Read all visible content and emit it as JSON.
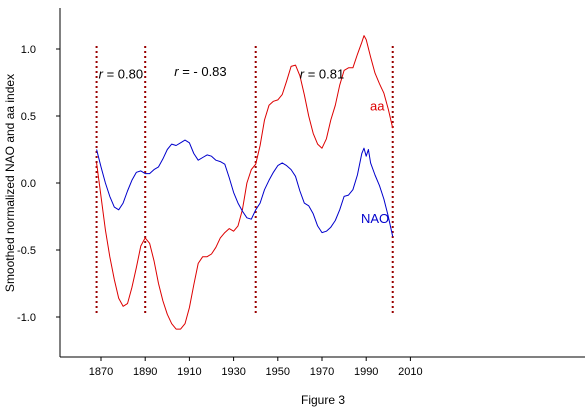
{
  "colors": {
    "aa": "#dd0000",
    "NAO": "#0000cc",
    "divider": "#990000",
    "axis": "#000000"
  },
  "caption": "Figure 3",
  "chart_data": {
    "type": "line",
    "title": "",
    "xlabel": "",
    "ylabel": "Smoothed normalized NAO and aa index",
    "xlim": [
      1860,
      2022
    ],
    "ylim": [
      -1.3,
      1.3
    ],
    "x_ticks": [
      1870,
      1890,
      1910,
      1930,
      1950,
      1970,
      1990,
      2010
    ],
    "y_ticks": [
      {
        "value": 1.0,
        "label": "1.0"
      },
      {
        "value": 0.5,
        "label": "0.5"
      },
      {
        "value": 0.0,
        "label": "0.0"
      },
      {
        "value": -0.5,
        "label": "-0.5"
      },
      {
        "value": -1.0,
        "label": "-1.0"
      }
    ],
    "grid": false,
    "series": [
      {
        "name": "aa",
        "color": "#dd0000",
        "points": [
          [
            1868,
            0.15
          ],
          [
            1870,
            -0.1
          ],
          [
            1872,
            -0.35
          ],
          [
            1874,
            -0.55
          ],
          [
            1876,
            -0.72
          ],
          [
            1878,
            -0.86
          ],
          [
            1880,
            -0.92
          ],
          [
            1882,
            -0.9
          ],
          [
            1884,
            -0.78
          ],
          [
            1886,
            -0.63
          ],
          [
            1888,
            -0.47
          ],
          [
            1890,
            -0.41
          ],
          [
            1892,
            -0.45
          ],
          [
            1894,
            -0.58
          ],
          [
            1896,
            -0.75
          ],
          [
            1898,
            -0.88
          ],
          [
            1900,
            -0.98
          ],
          [
            1902,
            -1.05
          ],
          [
            1904,
            -1.09
          ],
          [
            1906,
            -1.09
          ],
          [
            1908,
            -1.05
          ],
          [
            1910,
            -0.93
          ],
          [
            1912,
            -0.76
          ],
          [
            1914,
            -0.6
          ],
          [
            1916,
            -0.55
          ],
          [
            1918,
            -0.55
          ],
          [
            1920,
            -0.53
          ],
          [
            1922,
            -0.48
          ],
          [
            1924,
            -0.41
          ],
          [
            1926,
            -0.37
          ],
          [
            1928,
            -0.34
          ],
          [
            1930,
            -0.36
          ],
          [
            1932,
            -0.32
          ],
          [
            1934,
            -0.2
          ],
          [
            1936,
            0.0
          ],
          [
            1938,
            0.1
          ],
          [
            1940,
            0.14
          ],
          [
            1942,
            0.28
          ],
          [
            1944,
            0.47
          ],
          [
            1946,
            0.58
          ],
          [
            1948,
            0.61
          ],
          [
            1950,
            0.62
          ],
          [
            1952,
            0.66
          ],
          [
            1954,
            0.76
          ],
          [
            1956,
            0.87
          ],
          [
            1958,
            0.88
          ],
          [
            1960,
            0.8
          ],
          [
            1962,
            0.66
          ],
          [
            1964,
            0.5
          ],
          [
            1966,
            0.37
          ],
          [
            1968,
            0.29
          ],
          [
            1970,
            0.26
          ],
          [
            1972,
            0.33
          ],
          [
            1974,
            0.47
          ],
          [
            1976,
            0.58
          ],
          [
            1978,
            0.73
          ],
          [
            1980,
            0.84
          ],
          [
            1982,
            0.86
          ],
          [
            1984,
            0.86
          ],
          [
            1986,
            0.96
          ],
          [
            1988,
            1.05
          ],
          [
            1989,
            1.1
          ],
          [
            1990,
            1.07
          ],
          [
            1992,
            0.94
          ],
          [
            1994,
            0.82
          ],
          [
            1996,
            0.74
          ],
          [
            1998,
            0.67
          ],
          [
            2000,
            0.55
          ],
          [
            2002,
            0.41
          ]
        ]
      },
      {
        "name": "NAO",
        "color": "#0000cc",
        "points": [
          [
            1868,
            0.25
          ],
          [
            1870,
            0.12
          ],
          [
            1872,
            0.0
          ],
          [
            1874,
            -0.1
          ],
          [
            1876,
            -0.18
          ],
          [
            1878,
            -0.2
          ],
          [
            1880,
            -0.15
          ],
          [
            1882,
            -0.06
          ],
          [
            1884,
            0.02
          ],
          [
            1886,
            0.08
          ],
          [
            1888,
            0.09
          ],
          [
            1890,
            0.07
          ],
          [
            1892,
            0.07
          ],
          [
            1894,
            0.1
          ],
          [
            1896,
            0.12
          ],
          [
            1898,
            0.18
          ],
          [
            1900,
            0.25
          ],
          [
            1902,
            0.29
          ],
          [
            1904,
            0.28
          ],
          [
            1906,
            0.3
          ],
          [
            1908,
            0.32
          ],
          [
            1910,
            0.3
          ],
          [
            1912,
            0.22
          ],
          [
            1914,
            0.17
          ],
          [
            1916,
            0.19
          ],
          [
            1918,
            0.21
          ],
          [
            1920,
            0.2
          ],
          [
            1922,
            0.17
          ],
          [
            1924,
            0.16
          ],
          [
            1926,
            0.14
          ],
          [
            1928,
            0.04
          ],
          [
            1930,
            -0.07
          ],
          [
            1932,
            -0.15
          ],
          [
            1934,
            -0.21
          ],
          [
            1936,
            -0.26
          ],
          [
            1938,
            -0.27
          ],
          [
            1940,
            -0.2
          ],
          [
            1942,
            -0.15
          ],
          [
            1944,
            -0.05
          ],
          [
            1946,
            0.02
          ],
          [
            1948,
            0.08
          ],
          [
            1950,
            0.13
          ],
          [
            1952,
            0.15
          ],
          [
            1954,
            0.13
          ],
          [
            1956,
            0.1
          ],
          [
            1958,
            0.05
          ],
          [
            1960,
            -0.06
          ],
          [
            1962,
            -0.15
          ],
          [
            1964,
            -0.17
          ],
          [
            1966,
            -0.23
          ],
          [
            1968,
            -0.32
          ],
          [
            1970,
            -0.37
          ],
          [
            1972,
            -0.36
          ],
          [
            1974,
            -0.33
          ],
          [
            1976,
            -0.28
          ],
          [
            1978,
            -0.2
          ],
          [
            1980,
            -0.1
          ],
          [
            1982,
            -0.09
          ],
          [
            1984,
            -0.05
          ],
          [
            1986,
            0.06
          ],
          [
            1988,
            0.22
          ],
          [
            1989,
            0.26
          ],
          [
            1990,
            0.2
          ],
          [
            1991,
            0.25
          ],
          [
            1992,
            0.15
          ],
          [
            1994,
            0.06
          ],
          [
            1996,
            -0.02
          ],
          [
            1998,
            -0.12
          ],
          [
            2000,
            -0.25
          ],
          [
            2002,
            -0.4
          ]
        ]
      }
    ],
    "series_labels": [
      {
        "text": "aa",
        "series": "aa",
        "x": 1995,
        "y": 0.57
      },
      {
        "text": "NAO",
        "series": "NAO",
        "x": 1994,
        "y": -0.27
      }
    ],
    "vertical_dividers": [
      1868,
      1890,
      1940,
      2002
    ],
    "annotations": [
      {
        "text": "r = 0.80",
        "x": 1879,
        "y": 0.81
      },
      {
        "text": "r = - 0.83",
        "x": 1915,
        "y": 0.83
      },
      {
        "text": "r = 0.81",
        "x": 1970,
        "y": 0.81
      }
    ]
  }
}
